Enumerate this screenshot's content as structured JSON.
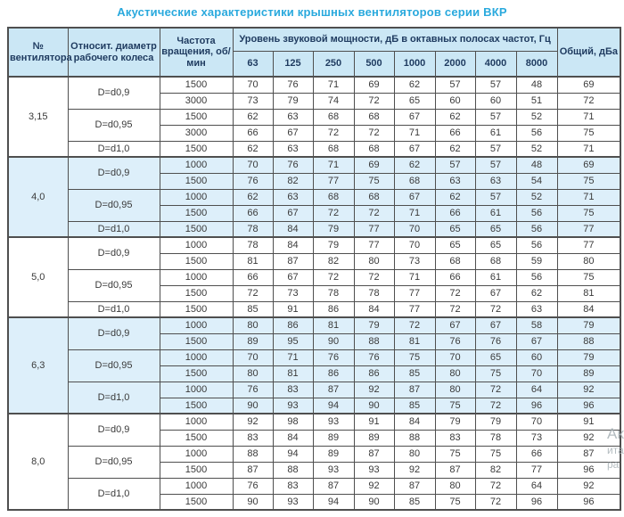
{
  "title": "Акустические характеристики крышных вентиляторов серии ВКР",
  "table": {
    "headers": {
      "fan_number": "№ вентилятора",
      "diameter": "Относит. диаметр рабочего колеса",
      "frequency": "Частота вращения, об/мин",
      "sound_power": "Уровень звуковой мощности, дБ в октавных полосах частот, Гц",
      "octave_bands": [
        "63",
        "125",
        "250",
        "500",
        "1000",
        "2000",
        "4000",
        "8000"
      ],
      "total": "Общий, дБа"
    },
    "groups": [
      {
        "fan": "3,15",
        "shaded": false,
        "diameters": [
          {
            "label": "D=d0,9",
            "rows": [
              {
                "rpm": "1500",
                "values": [
                  70,
                  76,
                  71,
                  69,
                  62,
                  57,
                  57,
                  48
                ],
                "total": 69
              },
              {
                "rpm": "3000",
                "values": [
                  73,
                  79,
                  74,
                  72,
                  65,
                  60,
                  60,
                  51
                ],
                "total": 72
              }
            ]
          },
          {
            "label": "D=d0,95",
            "rows": [
              {
                "rpm": "1500",
                "values": [
                  62,
                  63,
                  68,
                  68,
                  67,
                  62,
                  57,
                  52
                ],
                "total": 71
              },
              {
                "rpm": "3000",
                "values": [
                  66,
                  67,
                  72,
                  72,
                  71,
                  66,
                  61,
                  56
                ],
                "total": 75
              }
            ]
          },
          {
            "label": "D=d1,0",
            "rows": [
              {
                "rpm": "1500",
                "values": [
                  62,
                  63,
                  68,
                  68,
                  67,
                  62,
                  57,
                  52
                ],
                "total": 71
              }
            ]
          }
        ]
      },
      {
        "fan": "4,0",
        "shaded": true,
        "diameters": [
          {
            "label": "D=d0,9",
            "rows": [
              {
                "rpm": "1000",
                "values": [
                  70,
                  76,
                  71,
                  69,
                  62,
                  57,
                  57,
                  48
                ],
                "total": 69
              },
              {
                "rpm": "1500",
                "values": [
                  76,
                  82,
                  77,
                  75,
                  68,
                  63,
                  63,
                  54
                ],
                "total": 75
              }
            ]
          },
          {
            "label": "D=d0,95",
            "rows": [
              {
                "rpm": "1000",
                "values": [
                  62,
                  63,
                  68,
                  68,
                  67,
                  62,
                  57,
                  52
                ],
                "total": 71
              },
              {
                "rpm": "1500",
                "values": [
                  66,
                  67,
                  72,
                  72,
                  71,
                  66,
                  61,
                  56
                ],
                "total": 75
              }
            ]
          },
          {
            "label": "D=d1,0",
            "rows": [
              {
                "rpm": "1500",
                "values": [
                  78,
                  84,
                  79,
                  77,
                  70,
                  65,
                  65,
                  56
                ],
                "total": 77
              }
            ]
          }
        ]
      },
      {
        "fan": "5,0",
        "shaded": false,
        "diameters": [
          {
            "label": "D=d0,9",
            "rows": [
              {
                "rpm": "1000",
                "values": [
                  78,
                  84,
                  79,
                  77,
                  70,
                  65,
                  65,
                  56
                ],
                "total": 77
              },
              {
                "rpm": "1500",
                "values": [
                  81,
                  87,
                  82,
                  80,
                  73,
                  68,
                  68,
                  59
                ],
                "total": 80
              }
            ]
          },
          {
            "label": "D=d0,95",
            "rows": [
              {
                "rpm": "1000",
                "values": [
                  66,
                  67,
                  72,
                  72,
                  71,
                  66,
                  61,
                  56
                ],
                "total": 75
              },
              {
                "rpm": "1500",
                "values": [
                  72,
                  73,
                  78,
                  78,
                  77,
                  72,
                  67,
                  62
                ],
                "total": 81
              }
            ]
          },
          {
            "label": "D=d1,0",
            "rows": [
              {
                "rpm": "1500",
                "values": [
                  85,
                  91,
                  86,
                  84,
                  77,
                  72,
                  72,
                  63
                ],
                "total": 84
              }
            ]
          }
        ]
      },
      {
        "fan": "6,3",
        "shaded": true,
        "diameters": [
          {
            "label": "D=d0,9",
            "rows": [
              {
                "rpm": "1000",
                "values": [
                  80,
                  86,
                  81,
                  79,
                  72,
                  67,
                  67,
                  58
                ],
                "total": 79
              },
              {
                "rpm": "1500",
                "values": [
                  89,
                  95,
                  90,
                  88,
                  81,
                  76,
                  76,
                  67
                ],
                "total": 88
              }
            ]
          },
          {
            "label": "D=d0,95",
            "rows": [
              {
                "rpm": "1000",
                "values": [
                  70,
                  71,
                  76,
                  76,
                  75,
                  70,
                  65,
                  60
                ],
                "total": 79
              },
              {
                "rpm": "1500",
                "values": [
                  80,
                  81,
                  86,
                  86,
                  85,
                  80,
                  75,
                  70
                ],
                "total": 89
              }
            ]
          },
          {
            "label": "D=d1,0",
            "rows": [
              {
                "rpm": "1000",
                "values": [
                  76,
                  83,
                  87,
                  92,
                  87,
                  80,
                  72,
                  64
                ],
                "total": 92
              },
              {
                "rpm": "1500",
                "values": [
                  90,
                  93,
                  94,
                  90,
                  85,
                  75,
                  72,
                  96
                ],
                "total": 96
              }
            ]
          }
        ]
      },
      {
        "fan": "8,0",
        "shaded": false,
        "diameters": [
          {
            "label": "D=d0,9",
            "rows": [
              {
                "rpm": "1000",
                "values": [
                  92,
                  98,
                  93,
                  91,
                  84,
                  79,
                  79,
                  70
                ],
                "total": 91
              },
              {
                "rpm": "1500",
                "values": [
                  83,
                  84,
                  89,
                  89,
                  88,
                  83,
                  78,
                  73
                ],
                "total": 92
              }
            ]
          },
          {
            "label": "D=d0,95",
            "rows": [
              {
                "rpm": "1000",
                "values": [
                  88,
                  94,
                  89,
                  87,
                  80,
                  75,
                  75,
                  66
                ],
                "total": 87
              },
              {
                "rpm": "1500",
                "values": [
                  87,
                  88,
                  93,
                  93,
                  92,
                  87,
                  82,
                  77
                ],
                "total": 96
              }
            ]
          },
          {
            "label": "D=d1,0",
            "rows": [
              {
                "rpm": "1000",
                "values": [
                  76,
                  83,
                  87,
                  92,
                  87,
                  80,
                  72,
                  64
                ],
                "total": 92
              },
              {
                "rpm": "1500",
                "values": [
                  90,
                  93,
                  94,
                  90,
                  85,
                  75,
                  72,
                  96
                ],
                "total": 96
              }
            ]
          }
        ]
      }
    ]
  },
  "watermark": {
    "line1": "Ак",
    "line2": "ита",
    "line3": "ра"
  },
  "colors": {
    "title": "#29a9dd",
    "header_bg": "#cbe7f5",
    "header_text": "#1e3a5f",
    "shaded_row_bg": "#ddeffa",
    "border": "#4f4f4f",
    "data_text": "#3a3a3a"
  }
}
